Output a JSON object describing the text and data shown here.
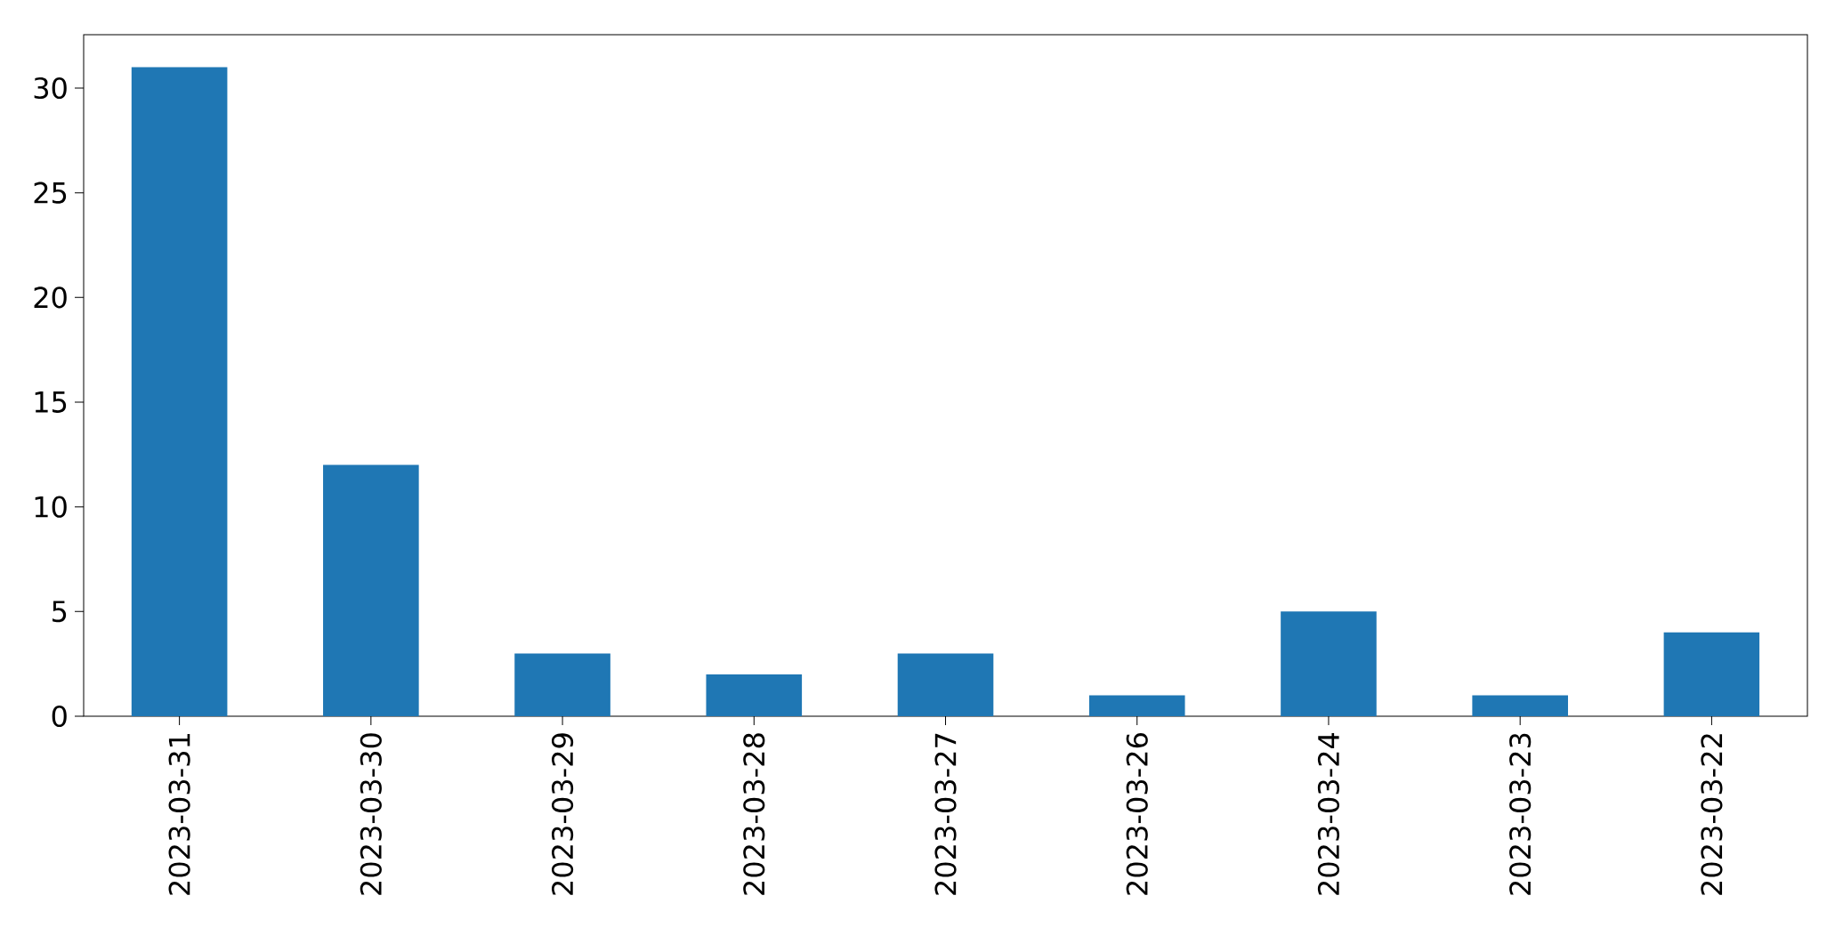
{
  "chart_data": {
    "type": "bar",
    "categories": [
      "2023-03-31",
      "2023-03-30",
      "2023-03-29",
      "2023-03-28",
      "2023-03-27",
      "2023-03-26",
      "2023-03-24",
      "2023-03-23",
      "2023-03-22"
    ],
    "values": [
      31,
      12,
      3,
      2,
      3,
      1,
      5,
      1,
      4
    ],
    "color": "#1f77b4",
    "ylim": [
      0,
      32.55
    ],
    "yticks": [
      0,
      5,
      10,
      15,
      20,
      25,
      30
    ],
    "grid": false
  }
}
